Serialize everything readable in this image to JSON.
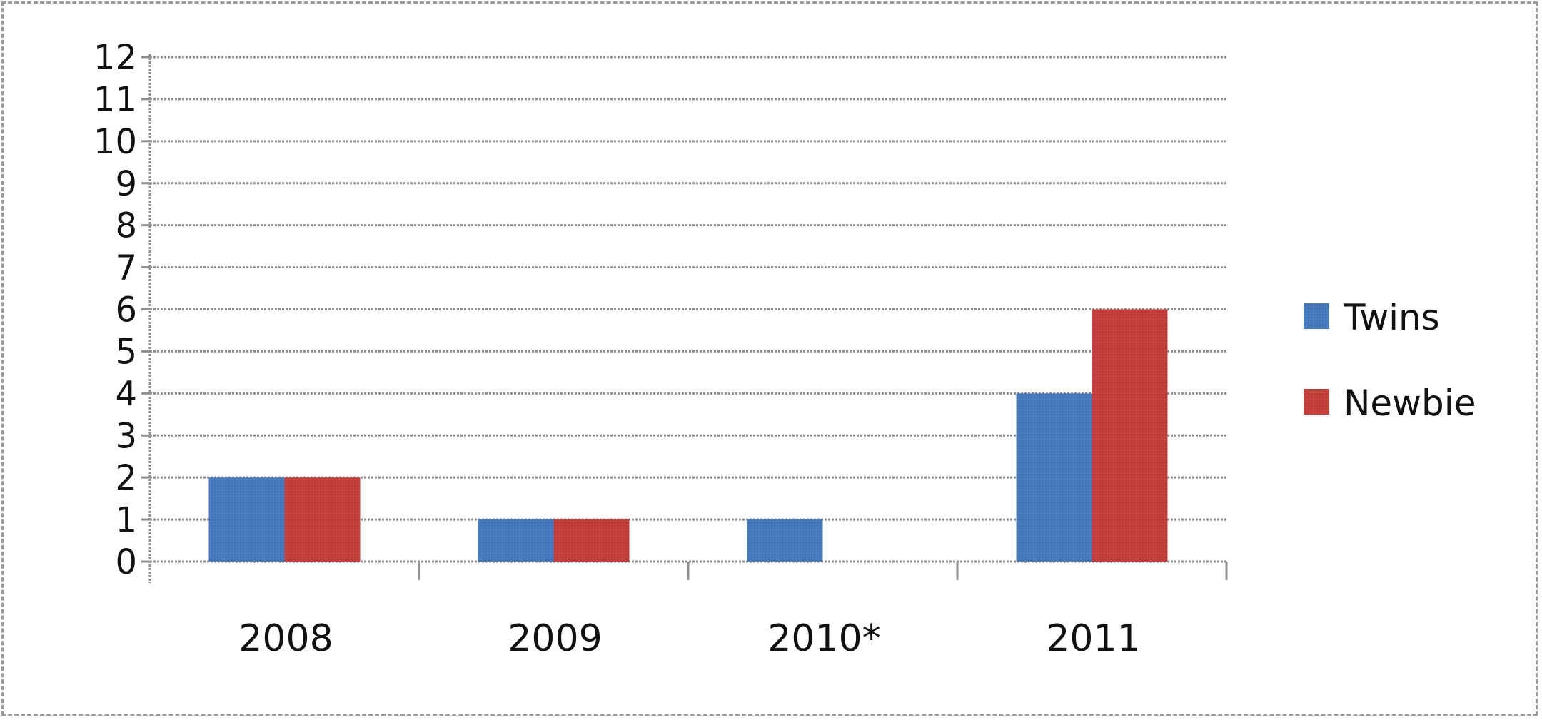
{
  "chart_data": {
    "type": "bar",
    "title": "",
    "xlabel": "",
    "ylabel": "",
    "categories": [
      "2008",
      "2009",
      "2010*",
      "2011"
    ],
    "series": [
      {
        "name": "Twins",
        "values": [
          2,
          1,
          1,
          4
        ],
        "color": "#4a7cc2"
      },
      {
        "name": "Newbie",
        "values": [
          2,
          1,
          0,
          6
        ],
        "color": "#c8403d"
      }
    ],
    "ylim": [
      0,
      12
    ],
    "yticks": [
      "0",
      "1",
      "2",
      "3",
      "4",
      "5",
      "6",
      "7",
      "8",
      "9",
      "10",
      "11",
      "12"
    ],
    "grid": true,
    "legend": "right"
  }
}
